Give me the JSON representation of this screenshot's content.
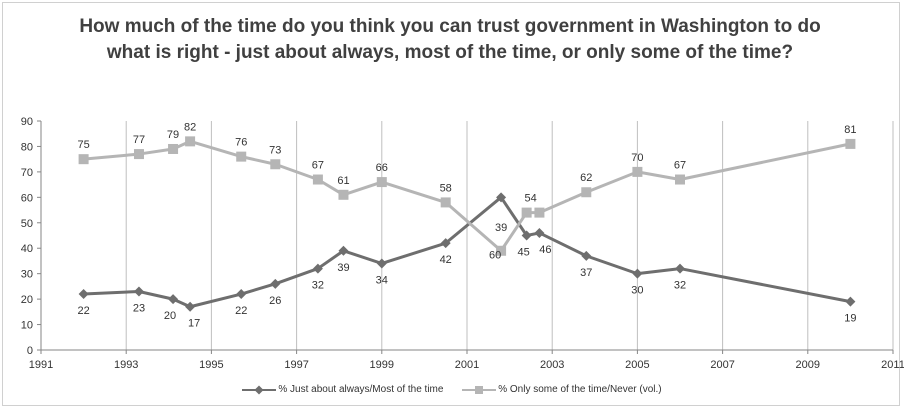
{
  "chart_data": {
    "type": "line",
    "title": "How much of the time do you think you can trust government in Washington to do what is right - just about always, most of the time, or only some of the time?",
    "xlim": [
      1991,
      2011
    ],
    "ylim": [
      0,
      90
    ],
    "x_ticks": [
      "1991",
      "1993",
      "1995",
      "1997",
      "1999",
      "2001",
      "2003",
      "2005",
      "2007",
      "2009",
      "2011"
    ],
    "y_ticks": [
      "0",
      "10",
      "20",
      "30",
      "40",
      "50",
      "60",
      "70",
      "80",
      "90"
    ],
    "grid": "vertical",
    "legend_position": "bottom",
    "series": [
      {
        "name": "% Just about always/Most of the time",
        "color": "#6e6e6e",
        "marker": "diamond",
        "points": [
          {
            "x": 1992.0,
            "y": 22
          },
          {
            "x": 1993.3,
            "y": 23
          },
          {
            "x": 1994.1,
            "y": 20
          },
          {
            "x": 1994.5,
            "y": 17
          },
          {
            "x": 1995.7,
            "y": 22
          },
          {
            "x": 1996.5,
            "y": 26
          },
          {
            "x": 1997.5,
            "y": 32
          },
          {
            "x": 1998.1,
            "y": 39
          },
          {
            "x": 1999.0,
            "y": 34
          },
          {
            "x": 2000.5,
            "y": 42
          },
          {
            "x": 2001.8,
            "y": 60
          },
          {
            "x": 2002.4,
            "y": 45
          },
          {
            "x": 2002.7,
            "y": 46
          },
          {
            "x": 2003.8,
            "y": 37
          },
          {
            "x": 2005.0,
            "y": 30
          },
          {
            "x": 2006.0,
            "y": 32
          },
          {
            "x": 2010.0,
            "y": 19
          }
        ]
      },
      {
        "name": "% Only some of the time/Never (vol.)",
        "color": "#b5b5b5",
        "marker": "square",
        "points": [
          {
            "x": 1992.0,
            "y": 75
          },
          {
            "x": 1993.3,
            "y": 77
          },
          {
            "x": 1994.1,
            "y": 79
          },
          {
            "x": 1994.5,
            "y": 82
          },
          {
            "x": 1995.7,
            "y": 76
          },
          {
            "x": 1996.5,
            "y": 73
          },
          {
            "x": 1997.5,
            "y": 67
          },
          {
            "x": 1998.1,
            "y": 61
          },
          {
            "x": 1999.0,
            "y": 66
          },
          {
            "x": 2000.5,
            "y": 58
          },
          {
            "x": 2001.8,
            "y": 39
          },
          {
            "x": 2002.4,
            "y": 54
          },
          {
            "x": 2002.7,
            "y": 54
          },
          {
            "x": 2003.8,
            "y": 62
          },
          {
            "x": 2005.0,
            "y": 70
          },
          {
            "x": 2006.0,
            "y": 67
          },
          {
            "x": 2010.0,
            "y": 81
          }
        ]
      }
    ]
  }
}
